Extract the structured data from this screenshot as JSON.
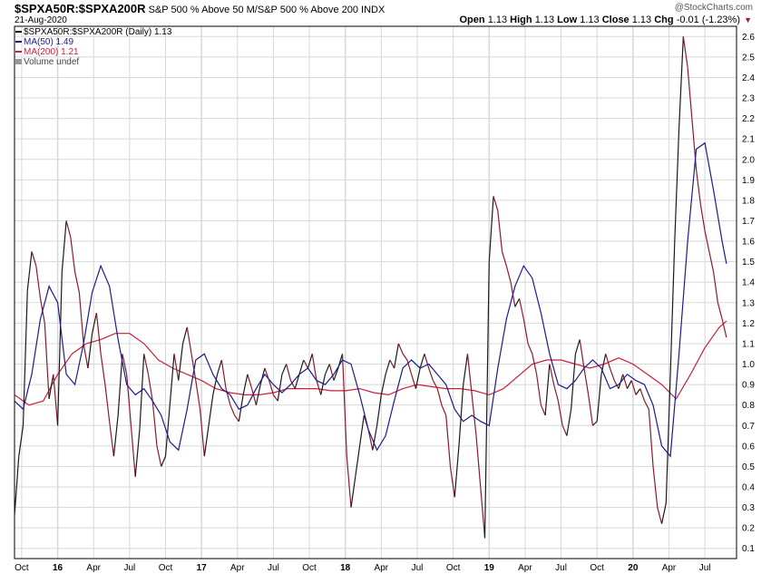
{
  "header": {
    "symbol": "$SPXA50R:$SPXA200R",
    "description": "S&P 500 % Above 50 M/S&P 500 % Above 200",
    "exchange": "INDX",
    "date": "21-Aug-2020",
    "watermark": "@StockCharts.com",
    "open_label": "Open",
    "open_value": "1.13",
    "high_label": "High",
    "high_value": "1.13",
    "low_label": "Low",
    "low_value": "1.13",
    "close_label": "Close",
    "close_value": "1.13",
    "chg_label": "Chg",
    "chg_value": "-0.01 (-1.23%)"
  },
  "legend": {
    "price": "$SPXA50R:$SPXA200R (Daily) 1.13",
    "ma50": "MA(50) 1.49",
    "ma200": "MA(200) 1.21",
    "volume": "Volume undef"
  },
  "colors": {
    "price_down": "#8b1a2e",
    "price_up": "#1a1a1a",
    "ma50": "#1c1c8c",
    "ma200": "#cc1f3a",
    "grid": "#d8d8d8",
    "axis": "#000000"
  },
  "chart_data": {
    "type": "line",
    "title": "$SPXA50R:$SPXA200R",
    "xlabel": "",
    "ylabel": "",
    "ylim": [
      0.05,
      2.65
    ],
    "xlim": [
      2015.7,
      2020.72
    ],
    "y_ticks": [
      "0.1",
      "0.2",
      "0.3",
      "0.4",
      "0.5",
      "0.6",
      "0.7",
      "0.8",
      "0.9",
      "1.0",
      "1.1",
      "1.2",
      "1.3",
      "1.4",
      "1.5",
      "1.6",
      "1.7",
      "1.8",
      "1.9",
      "2.0",
      "2.1",
      "2.2",
      "2.3",
      "2.4",
      "2.5",
      "2.6"
    ],
    "x_ticks": [
      {
        "label": "Oct",
        "x": 2015.75
      },
      {
        "label": "16",
        "x": 2016.0
      },
      {
        "label": "Apr",
        "x": 2016.25
      },
      {
        "label": "Jul",
        "x": 2016.5
      },
      {
        "label": "Oct",
        "x": 2016.75
      },
      {
        "label": "17",
        "x": 2017.0
      },
      {
        "label": "Apr",
        "x": 2017.25
      },
      {
        "label": "Jul",
        "x": 2017.5
      },
      {
        "label": "Oct",
        "x": 2017.75
      },
      {
        "label": "18",
        "x": 2018.0
      },
      {
        "label": "Apr",
        "x": 2018.25
      },
      {
        "label": "Jul",
        "x": 2018.5
      },
      {
        "label": "Oct",
        "x": 2018.75
      },
      {
        "label": "19",
        "x": 2019.0
      },
      {
        "label": "Apr",
        "x": 2019.25
      },
      {
        "label": "Jul",
        "x": 2019.5
      },
      {
        "label": "Oct",
        "x": 2019.75
      },
      {
        "label": "20",
        "x": 2020.0
      },
      {
        "label": "Apr",
        "x": 2020.25
      },
      {
        "label": "Jul",
        "x": 2020.5
      }
    ],
    "series": [
      {
        "name": "$SPXA50R:$SPXA200R (Daily)",
        "x": [
          2015.7,
          2015.73,
          2015.76,
          2015.79,
          2015.82,
          2015.85,
          2015.88,
          2015.91,
          2015.94,
          2015.97,
          2016.0,
          2016.03,
          2016.06,
          2016.09,
          2016.12,
          2016.15,
          2016.18,
          2016.21,
          2016.24,
          2016.27,
          2016.3,
          2016.33,
          2016.36,
          2016.39,
          2016.42,
          2016.45,
          2016.48,
          2016.51,
          2016.54,
          2016.57,
          2016.6,
          2016.63,
          2016.66,
          2016.69,
          2016.72,
          2016.75,
          2016.78,
          2016.81,
          2016.84,
          2016.87,
          2016.9,
          2016.93,
          2016.96,
          2016.99,
          2017.02,
          2017.05,
          2017.08,
          2017.11,
          2017.14,
          2017.17,
          2017.2,
          2017.23,
          2017.26,
          2017.29,
          2017.32,
          2017.35,
          2017.38,
          2017.41,
          2017.44,
          2017.47,
          2017.5,
          2017.53,
          2017.56,
          2017.59,
          2017.62,
          2017.65,
          2017.68,
          2017.71,
          2017.74,
          2017.77,
          2017.8,
          2017.83,
          2017.86,
          2017.89,
          2017.92,
          2017.95,
          2017.98,
          2018.01,
          2018.04,
          2018.07,
          2018.1,
          2018.13,
          2018.16,
          2018.19,
          2018.22,
          2018.25,
          2018.28,
          2018.31,
          2018.34,
          2018.37,
          2018.4,
          2018.43,
          2018.46,
          2018.49,
          2018.52,
          2018.55,
          2018.58,
          2018.61,
          2018.64,
          2018.67,
          2018.7,
          2018.73,
          2018.76,
          2018.79,
          2018.82,
          2018.85,
          2018.88,
          2018.91,
          2018.94,
          2018.97,
          2019.0,
          2019.03,
          2019.06,
          2019.09,
          2019.12,
          2019.15,
          2019.18,
          2019.21,
          2019.24,
          2019.27,
          2019.3,
          2019.33,
          2019.36,
          2019.39,
          2019.42,
          2019.45,
          2019.48,
          2019.51,
          2019.54,
          2019.57,
          2019.6,
          2019.63,
          2019.66,
          2019.69,
          2019.72,
          2019.75,
          2019.78,
          2019.81,
          2019.84,
          2019.87,
          2019.9,
          2019.93,
          2019.96,
          2019.99,
          2020.02,
          2020.05,
          2020.08,
          2020.11,
          2020.14,
          2020.17,
          2020.2,
          2020.23,
          2020.26,
          2020.29,
          2020.32,
          2020.35,
          2020.38,
          2020.41,
          2020.44,
          2020.47,
          2020.5,
          2020.53,
          2020.56,
          2020.59,
          2020.62,
          2020.65
        ],
        "values": [
          0.26,
          0.55,
          0.7,
          1.36,
          1.55,
          1.48,
          1.32,
          1.2,
          0.83,
          0.95,
          0.7,
          1.45,
          1.7,
          1.62,
          1.45,
          1.35,
          1.1,
          0.98,
          1.15,
          1.25,
          1.05,
          0.9,
          0.72,
          0.55,
          0.75,
          1.05,
          0.95,
          0.7,
          0.45,
          0.68,
          1.05,
          0.95,
          0.82,
          0.6,
          0.5,
          0.55,
          0.8,
          1.05,
          0.92,
          1.1,
          1.18,
          1.05,
          0.92,
          0.78,
          0.55,
          0.7,
          0.85,
          0.95,
          1.02,
          0.88,
          0.8,
          0.75,
          0.72,
          0.85,
          0.95,
          0.88,
          0.8,
          0.9,
          0.98,
          0.92,
          0.85,
          0.82,
          0.95,
          1.0,
          0.92,
          0.88,
          0.95,
          1.02,
          0.98,
          1.05,
          0.92,
          0.85,
          0.95,
          1.0,
          0.92,
          0.98,
          1.05,
          0.55,
          0.3,
          0.45,
          0.6,
          0.75,
          0.68,
          0.58,
          0.7,
          0.85,
          0.95,
          1.02,
          0.98,
          1.1,
          1.05,
          1.02,
          0.95,
          0.88,
          0.98,
          1.05,
          0.98,
          0.92,
          0.88,
          0.8,
          0.75,
          0.5,
          0.35,
          0.6,
          0.9,
          1.05,
          0.85,
          0.65,
          0.4,
          0.15,
          1.5,
          1.82,
          1.75,
          1.55,
          1.48,
          1.4,
          1.28,
          1.32,
          1.22,
          1.1,
          1.05,
          0.95,
          0.8,
          0.75,
          1.0,
          0.9,
          0.82,
          0.7,
          0.65,
          0.78,
          1.05,
          1.12,
          0.98,
          0.85,
          0.7,
          0.72,
          0.95,
          1.05,
          0.98,
          0.92,
          0.88,
          0.95,
          0.88,
          0.92,
          0.85,
          0.88,
          0.82,
          0.78,
          0.5,
          0.3,
          0.22,
          0.32,
          0.95,
          1.6,
          2.15,
          2.6,
          2.45,
          2.2,
          1.95,
          1.78,
          1.65,
          1.55,
          1.45,
          1.3,
          1.22,
          1.13
        ]
      },
      {
        "name": "MA(50)",
        "x": [
          2015.7,
          2015.76,
          2015.82,
          2015.88,
          2015.94,
          2016.0,
          2016.06,
          2016.12,
          2016.18,
          2016.24,
          2016.3,
          2016.36,
          2016.42,
          2016.48,
          2016.54,
          2016.6,
          2016.66,
          2016.72,
          2016.78,
          2016.84,
          2016.9,
          2016.96,
          2017.02,
          2017.08,
          2017.14,
          2017.2,
          2017.26,
          2017.32,
          2017.38,
          2017.44,
          2017.5,
          2017.56,
          2017.62,
          2017.68,
          2017.74,
          2017.8,
          2017.86,
          2017.92,
          2017.98,
          2018.04,
          2018.1,
          2018.16,
          2018.22,
          2018.28,
          2018.34,
          2018.4,
          2018.46,
          2018.52,
          2018.58,
          2018.64,
          2018.7,
          2018.76,
          2018.82,
          2018.88,
          2018.94,
          2019.0,
          2019.06,
          2019.12,
          2019.18,
          2019.24,
          2019.3,
          2019.36,
          2019.42,
          2019.48,
          2019.54,
          2019.6,
          2019.66,
          2019.72,
          2019.78,
          2019.84,
          2019.9,
          2019.96,
          2020.02,
          2020.08,
          2020.14,
          2020.2,
          2020.26,
          2020.32,
          2020.38,
          2020.44,
          2020.5,
          2020.56,
          2020.62,
          2020.65
        ],
        "values": [
          0.82,
          0.78,
          0.95,
          1.22,
          1.38,
          1.3,
          0.95,
          0.9,
          1.1,
          1.35,
          1.48,
          1.38,
          1.12,
          0.9,
          0.85,
          0.88,
          0.82,
          0.75,
          0.62,
          0.58,
          0.78,
          1.02,
          1.05,
          0.95,
          0.88,
          0.85,
          0.78,
          0.8,
          0.88,
          0.95,
          0.9,
          0.86,
          0.9,
          0.95,
          0.98,
          0.92,
          0.9,
          0.95,
          1.02,
          1.0,
          0.85,
          0.68,
          0.58,
          0.65,
          0.82,
          0.98,
          1.02,
          0.98,
          1.0,
          0.95,
          0.9,
          0.78,
          0.72,
          0.75,
          0.72,
          0.7,
          0.98,
          1.22,
          1.38,
          1.48,
          1.42,
          1.25,
          1.05,
          0.9,
          0.88,
          0.92,
          0.98,
          1.02,
          0.98,
          0.88,
          0.9,
          0.95,
          0.92,
          0.9,
          0.8,
          0.6,
          0.55,
          1.05,
          1.6,
          2.05,
          2.08,
          1.85,
          1.6,
          1.49
        ]
      },
      {
        "name": "MA(200)",
        "x": [
          2015.7,
          2015.8,
          2015.9,
          2016.0,
          2016.1,
          2016.2,
          2016.3,
          2016.4,
          2016.5,
          2016.6,
          2016.7,
          2016.8,
          2016.9,
          2017.0,
          2017.1,
          2017.2,
          2017.3,
          2017.4,
          2017.5,
          2017.6,
          2017.7,
          2017.8,
          2017.9,
          2018.0,
          2018.1,
          2018.2,
          2018.3,
          2018.4,
          2018.5,
          2018.6,
          2018.7,
          2018.8,
          2018.9,
          2019.0,
          2019.1,
          2019.2,
          2019.3,
          2019.4,
          2019.5,
          2019.6,
          2019.7,
          2019.8,
          2019.9,
          2020.0,
          2020.1,
          2020.2,
          2020.3,
          2020.4,
          2020.5,
          2020.6,
          2020.65
        ],
        "values": [
          0.85,
          0.8,
          0.82,
          0.95,
          1.05,
          1.1,
          1.12,
          1.15,
          1.15,
          1.1,
          1.02,
          0.98,
          0.95,
          0.92,
          0.88,
          0.86,
          0.85,
          0.85,
          0.86,
          0.88,
          0.88,
          0.88,
          0.87,
          0.87,
          0.88,
          0.86,
          0.85,
          0.88,
          0.9,
          0.89,
          0.88,
          0.88,
          0.87,
          0.85,
          0.88,
          0.94,
          1.0,
          1.02,
          1.02,
          1.0,
          0.98,
          1.0,
          1.03,
          1.0,
          0.95,
          0.9,
          0.83,
          0.95,
          1.08,
          1.18,
          1.21
        ]
      }
    ]
  }
}
